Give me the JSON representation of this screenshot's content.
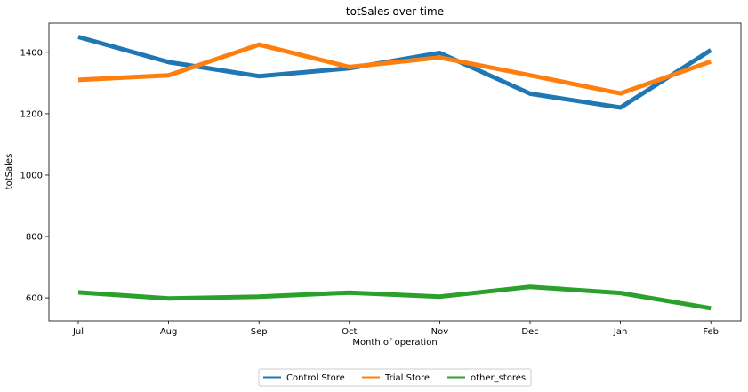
{
  "chart_data": {
    "type": "line",
    "title": "totSales over time",
    "xlabel": "Month of operation",
    "ylabel": "totSales",
    "categories": [
      "Jul",
      "Aug",
      "Sep",
      "Oct",
      "Nov",
      "Dec",
      "Jan",
      "Feb"
    ],
    "yticks": [
      600,
      800,
      1000,
      1200,
      1400
    ],
    "ylim": [
      525,
      1495
    ],
    "grid": false,
    "legend_position": "bottom-center",
    "series": [
      {
        "name": "Control Store",
        "color": "#1f77b4",
        "values": [
          1450,
          1368,
          1322,
          1348,
          1398,
          1265,
          1220,
          1407
        ]
      },
      {
        "name": "Trial Store",
        "color": "#ff7f0e",
        "values": [
          1310,
          1325,
          1425,
          1352,
          1383,
          1325,
          1266,
          1370
        ]
      },
      {
        "name": "other_stores",
        "color": "#2ca02c",
        "values": [
          618,
          598,
          604,
          617,
          604,
          636,
          616,
          566
        ]
      }
    ]
  }
}
